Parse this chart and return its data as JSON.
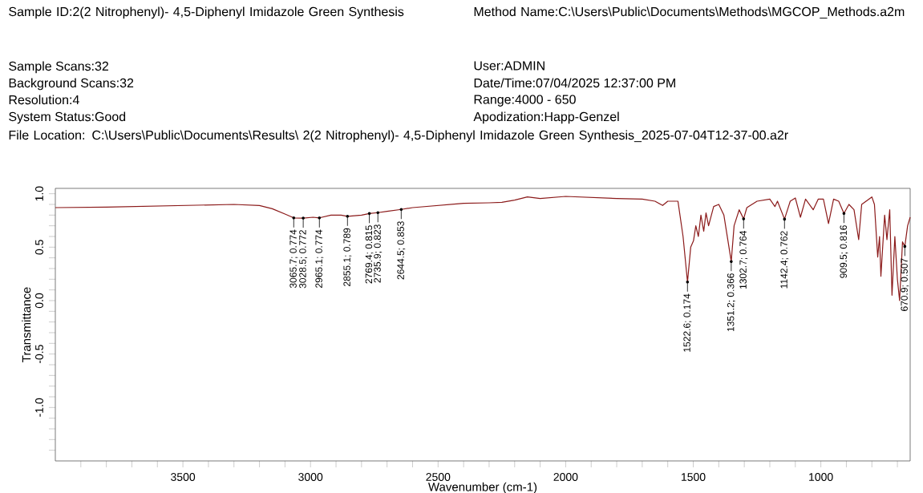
{
  "chart_data": {
    "type": "line",
    "title": "Sample ID:2(2 Nitrophenyl)- 4,5-Diphenyl Imidazole Green Synthesis",
    "xlabel": "Wavenumber (cm-1)",
    "ylabel": "Transmittance",
    "xlim": [
      4000,
      650
    ],
    "ylim": [
      -1.5,
      1.05
    ],
    "xticks": [
      {
        "value": 3900,
        "label": null
      },
      {
        "value": 3800,
        "label": null
      },
      {
        "value": 3700,
        "label": null
      },
      {
        "value": 3600,
        "label": null
      },
      3500,
      {
        "value": 3400,
        "label": null
      },
      {
        "value": 3300,
        "label": null
      },
      {
        "value": 3200,
        "label": null
      },
      {
        "value": 3100,
        "label": null
      },
      3000,
      {
        "value": 2900,
        "label": null
      },
      {
        "value": 2800,
        "label": null
      },
      {
        "value": 2700,
        "label": null
      },
      {
        "value": 2600,
        "label": null
      },
      2500,
      {
        "value": 2400,
        "label": null
      },
      {
        "value": 2300,
        "label": null
      },
      {
        "value": 2200,
        "label": null
      },
      {
        "value": 2100,
        "label": null
      },
      2000,
      {
        "value": 1900,
        "label": null
      },
      {
        "value": 1800,
        "label": null
      },
      {
        "value": 1700,
        "label": null
      },
      {
        "value": 1600,
        "label": null
      },
      1500,
      {
        "value": 1400,
        "label": null
      },
      {
        "value": 1300,
        "label": null
      },
      {
        "value": 1200,
        "label": null
      },
      {
        "value": 1100,
        "label": null
      },
      1000,
      {
        "value": 900,
        "label": null
      },
      {
        "value": 800,
        "label": null
      },
      {
        "value": 700,
        "label": null
      }
    ],
    "yticks": [
      {
        "value": -1.4,
        "label": null
      },
      {
        "value": -1.3,
        "label": null
      },
      {
        "value": -1.2,
        "label": null
      },
      {
        "value": -1.1,
        "label": null
      },
      {
        "value": -1.0,
        "label": "-1.0"
      },
      {
        "value": -0.9,
        "label": null
      },
      {
        "value": -0.8,
        "label": null
      },
      {
        "value": -0.7,
        "label": null
      },
      {
        "value": -0.6,
        "label": null
      },
      -0.5,
      {
        "value": -0.4,
        "label": null
      },
      {
        "value": -0.3,
        "label": null
      },
      {
        "value": -0.2,
        "label": null
      },
      {
        "value": -0.1,
        "label": null
      },
      {
        "value": 0.0,
        "label": "0.0"
      },
      {
        "value": 0.1,
        "label": null
      },
      {
        "value": 0.2,
        "label": null
      },
      {
        "value": 0.3,
        "label": null
      },
      {
        "value": 0.4,
        "label": null
      },
      0.5,
      {
        "value": 0.6,
        "label": null
      },
      {
        "value": 0.7,
        "label": null
      },
      {
        "value": 0.8,
        "label": null
      },
      {
        "value": 0.9,
        "label": null
      },
      {
        "value": 1.0,
        "label": "1.0"
      }
    ],
    "x": [
      4000,
      3800,
      3600,
      3400,
      3300,
      3200,
      3150,
      3100,
      3065.7,
      3028.5,
      2990,
      2965.1,
      2920,
      2880,
      2855.1,
      2800,
      2769.4,
      2735.9,
      2700,
      2644.5,
      2600,
      2500,
      2400,
      2300,
      2250,
      2200,
      2150,
      2100,
      2000,
      1900,
      1800,
      1700,
      1650,
      1620,
      1600,
      1560,
      1540,
      1522.6,
      1510,
      1499,
      1490,
      1480,
      1470,
      1459,
      1450,
      1440,
      1420,
      1400,
      1380,
      1351.2,
      1340,
      1320,
      1302.7,
      1290,
      1250,
      1200,
      1180,
      1170,
      1142.4,
      1120,
      1100,
      1080,
      1060,
      1030,
      1010,
      990,
      970,
      950,
      930,
      909.5,
      890,
      870,
      851.7,
      840,
      800,
      790,
      777.1,
      770,
      764.7,
      750,
      741,
      730,
      721.2,
      710,
      700,
      691.4,
      680,
      670.9,
      660,
      650
    ],
    "series": [
      {
        "color": "#8b1a1a",
        "values": [
          0.87,
          0.875,
          0.885,
          0.895,
          0.9,
          0.89,
          0.86,
          0.81,
          0.774,
          0.772,
          0.78,
          0.774,
          0.8,
          0.8,
          0.789,
          0.8,
          0.815,
          0.823,
          0.835,
          0.853,
          0.87,
          0.89,
          0.91,
          0.915,
          0.92,
          0.94,
          0.97,
          0.955,
          0.975,
          0.965,
          0.955,
          0.95,
          0.93,
          0.89,
          0.93,
          0.93,
          0.6,
          0.174,
          0.5,
          0.56,
          0.7,
          0.6,
          0.8,
          0.65,
          0.82,
          0.7,
          0.88,
          0.9,
          0.8,
          0.366,
          0.7,
          0.85,
          0.764,
          0.87,
          0.93,
          0.95,
          0.88,
          0.93,
          0.762,
          0.93,
          0.96,
          0.78,
          0.95,
          0.85,
          0.95,
          0.95,
          0.72,
          0.95,
          0.93,
          0.816,
          0.9,
          0.85,
          0.57,
          0.9,
          0.97,
          0.9,
          0.407,
          0.6,
          0.228,
          0.8,
          0.571,
          0.85,
          0.05,
          0.6,
          0.2,
          0.0,
          0.55,
          0.507,
          0.7,
          0.78
        ]
      }
    ],
    "annotations": [
      "Method Name:C:\\Users\\Public\\Documents\\Methods\\MGCOP_Methods.a2m",
      "Sample Scans:32",
      "User:ADMIN",
      "Background Scans:32",
      "Date/Time:07/04/2025 12:37:00 PM",
      "Resolution:4",
      "Range:4000 - 650",
      "System Status:Good",
      "Apodization:Happ-Genzel",
      "File Location: C:\\Users\\Public\\Documents\\Results\\ 2(2 Nitrophenyl)- 4,5-Diphenyl Imidazole Green Synthesis_2025-07-04T12-37-00.a2r",
      {
        "text": "3065.7; 0.774",
        "x": 3065.7,
        "y": 0.774
      },
      {
        "text": "3028.5; 0.772",
        "x": 3028.5,
        "y": 0.772
      },
      {
        "text": "2965.1; 0.774",
        "x": 2965.1,
        "y": 0.774
      },
      {
        "text": "2855.1; 0.789",
        "x": 2855.1,
        "y": 0.789
      },
      {
        "text": "2769.4; 0.815",
        "x": 2769.4,
        "y": 0.815
      },
      {
        "text": "2735.9; 0.823",
        "x": 2735.9,
        "y": 0.823
      },
      {
        "text": "2644.5; 0.853",
        "x": 2644.5,
        "y": 0.853
      },
      {
        "text": "1522.6; 0.174",
        "x": 1522.6,
        "y": 0.174
      },
      {
        "text": "1351.2; 0.366",
        "x": 1351.2,
        "y": 0.366
      },
      {
        "text": "1302.7; 0.764",
        "x": 1302.7,
        "y": 0.764
      },
      {
        "text": "1142.4; 0.762",
        "x": 1142.4,
        "y": 0.762
      },
      {
        "text": "909.5; 0.816",
        "x": 909.5,
        "y": 0.816
      },
      {
        "text": "670.9; 0.507",
        "x": 670.9,
        "y": 0.507
      }
    ]
  }
}
